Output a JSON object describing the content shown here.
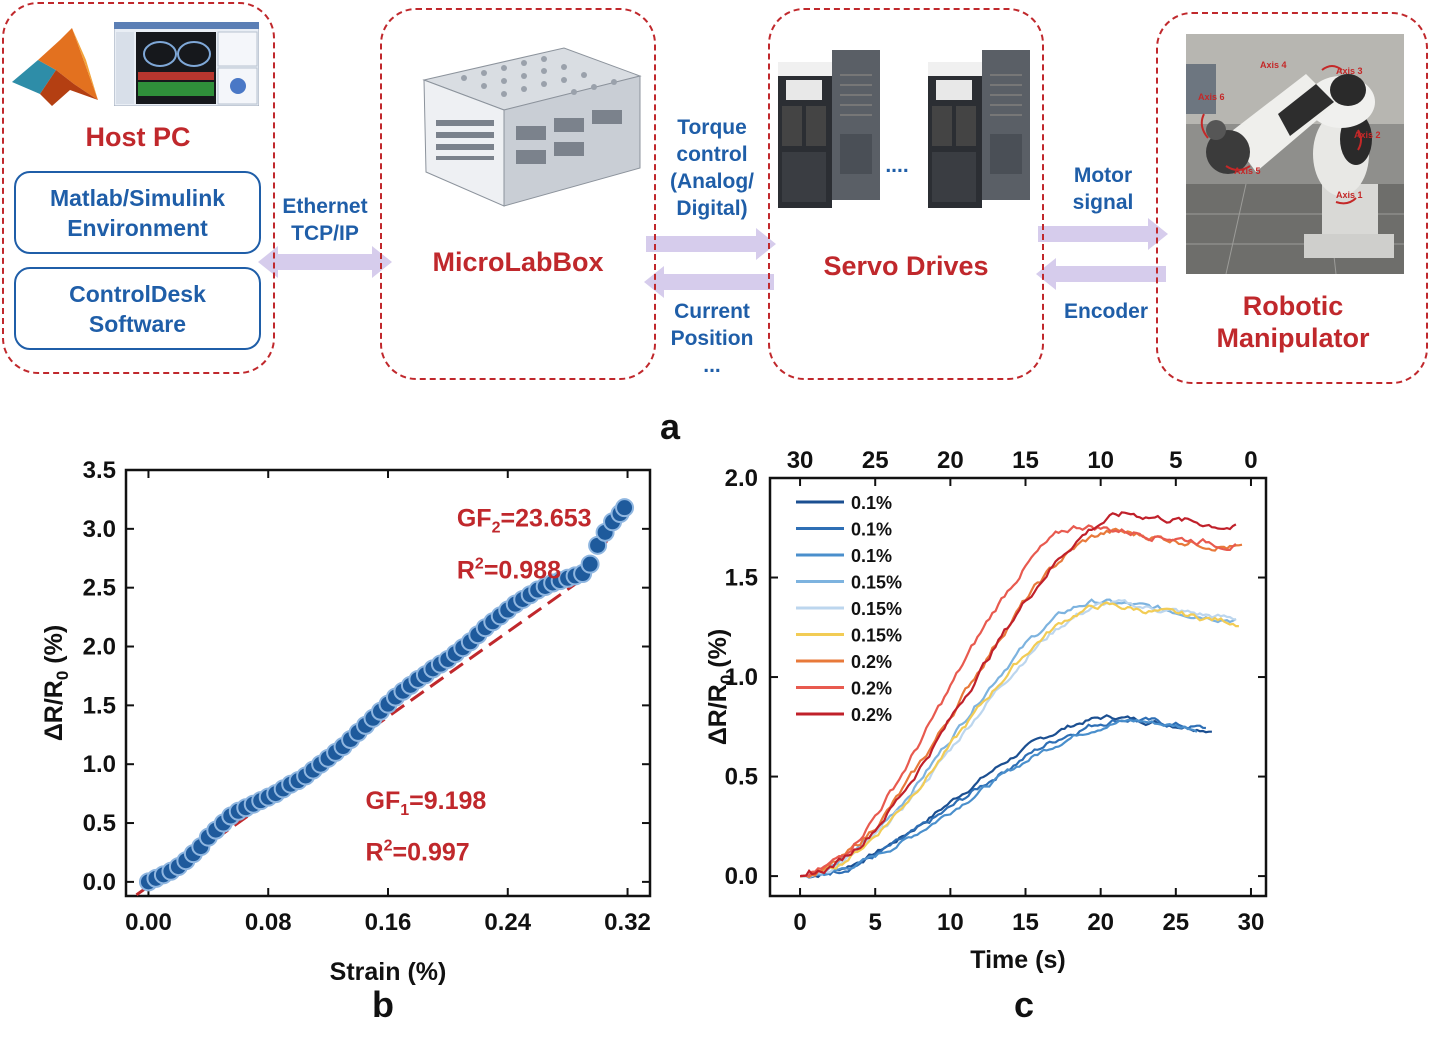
{
  "panel_a": {
    "letter": "a",
    "host_pc": {
      "title": "Host PC",
      "box1_line1": "Matlab/Simulink",
      "box1_line2": "Environment",
      "box2_line1": "ControlDesk",
      "box2_line2": "Software"
    },
    "ethernet": {
      "line1": "Ethernet",
      "line2": "TCP/IP"
    },
    "microlabbox": {
      "title": "MicroLabBox"
    },
    "torque": {
      "line1": "Torque",
      "line2": "control",
      "line3": "(Analog/",
      "line4": "Digital)"
    },
    "current": {
      "line1": "Current",
      "line2": "Position",
      "line3": "..."
    },
    "servo": {
      "title": "Servo Drives",
      "dots": "...."
    },
    "motor": {
      "line1": "Motor",
      "line2": "signal"
    },
    "encoder": {
      "label": "Encoder"
    },
    "robot": {
      "title_line1": "Robotic",
      "title_line2": "Manipulator",
      "axis_labels": [
        "Axis 4",
        "Axis 3",
        "Axis 6",
        "Axis 2",
        "Axis 5",
        "Axis 1"
      ]
    },
    "colors": {
      "box_border": "#c0282c",
      "blue_text": "#1f5ea8",
      "arrow": "#d6ccec"
    }
  },
  "panel_b": {
    "letter": "b",
    "annotations": {
      "gf2": "GF2=23.653",
      "r2_top": "R2=0.988",
      "gf1": "GF1=9.198",
      "r2_bottom": "R2=0.997"
    },
    "chart_data": {
      "type": "scatter",
      "xlabel": "Strain (%)",
      "ylabel": "ΔR/R0 (%)",
      "xlim": [
        -0.015,
        0.335
      ],
      "ylim": [
        -0.12,
        3.5
      ],
      "xticks": [
        "0.00",
        "0.08",
        "0.16",
        "0.24",
        "0.32"
      ],
      "yticks": [
        "0.0",
        "0.5",
        "1.0",
        "1.5",
        "2.0",
        "2.5",
        "3.0",
        "3.5"
      ],
      "series": [
        {
          "marker_color": "#1e5a9c",
          "points": [
            [
              0.0,
              0.0
            ],
            [
              0.005,
              0.03
            ],
            [
              0.01,
              0.06
            ],
            [
              0.015,
              0.09
            ],
            [
              0.02,
              0.13
            ],
            [
              0.025,
              0.18
            ],
            [
              0.03,
              0.24
            ],
            [
              0.035,
              0.3
            ],
            [
              0.04,
              0.38
            ],
            [
              0.045,
              0.44
            ],
            [
              0.05,
              0.5
            ],
            [
              0.055,
              0.56
            ],
            [
              0.06,
              0.6
            ],
            [
              0.065,
              0.63
            ],
            [
              0.07,
              0.66
            ],
            [
              0.075,
              0.69
            ],
            [
              0.08,
              0.72
            ],
            [
              0.085,
              0.75
            ],
            [
              0.09,
              0.79
            ],
            [
              0.095,
              0.83
            ],
            [
              0.1,
              0.86
            ],
            [
              0.105,
              0.9
            ],
            [
              0.11,
              0.95
            ],
            [
              0.115,
              1.0
            ],
            [
              0.12,
              1.05
            ],
            [
              0.125,
              1.1
            ],
            [
              0.13,
              1.15
            ],
            [
              0.135,
              1.21
            ],
            [
              0.14,
              1.27
            ],
            [
              0.145,
              1.33
            ],
            [
              0.15,
              1.39
            ],
            [
              0.155,
              1.45
            ],
            [
              0.16,
              1.51
            ],
            [
              0.165,
              1.57
            ],
            [
              0.17,
              1.62
            ],
            [
              0.175,
              1.67
            ],
            [
              0.18,
              1.72
            ],
            [
              0.185,
              1.76
            ],
            [
              0.19,
              1.81
            ],
            [
              0.195,
              1.85
            ],
            [
              0.2,
              1.89
            ],
            [
              0.205,
              1.94
            ],
            [
              0.21,
              1.99
            ],
            [
              0.215,
              2.04
            ],
            [
              0.22,
              2.1
            ],
            [
              0.225,
              2.16
            ],
            [
              0.23,
              2.21
            ],
            [
              0.235,
              2.26
            ],
            [
              0.24,
              2.31
            ],
            [
              0.245,
              2.36
            ],
            [
              0.25,
              2.4
            ],
            [
              0.255,
              2.44
            ],
            [
              0.26,
              2.48
            ],
            [
              0.265,
              2.51
            ],
            [
              0.27,
              2.54
            ],
            [
              0.275,
              2.56
            ],
            [
              0.28,
              2.58
            ],
            [
              0.285,
              2.6
            ],
            [
              0.29,
              2.62
            ],
            [
              0.295,
              2.7
            ],
            [
              0.3,
              2.86
            ],
            [
              0.305,
              2.97
            ],
            [
              0.31,
              3.06
            ],
            [
              0.315,
              3.13
            ],
            [
              0.318,
              3.18
            ]
          ]
        }
      ],
      "fit_lines": [
        {
          "color": "#c0282c",
          "style": "dashed",
          "from": [
            -0.008,
            -0.11
          ],
          "to": [
            0.295,
            2.62
          ]
        },
        {
          "color": "#c0282c",
          "style": "dashed",
          "from": [
            0.295,
            2.62
          ],
          "to": [
            0.32,
            3.25
          ]
        }
      ]
    }
  },
  "panel_c": {
    "letter": "c",
    "chart_data": {
      "type": "line",
      "xlabel": "Time (s)",
      "ylabel": "ΔR/R0 (%)",
      "xlim": [
        -2,
        31
      ],
      "ylim": [
        -0.1,
        2.0
      ],
      "xticks": [
        "0",
        "5",
        "10",
        "15",
        "20",
        "25",
        "30"
      ],
      "top_xticks": [
        "30",
        "25",
        "20",
        "15",
        "10",
        "5",
        "0"
      ],
      "yticks": [
        "0.0",
        "0.5",
        "1.0",
        "1.5",
        "2.0"
      ],
      "series": [
        {
          "name": "0.1%",
          "color": "#1b4f91",
          "plateau": 0.8,
          "x_end": 27.5,
          "rise": 21,
          "jitter": 0.01
        },
        {
          "name": "0.1%",
          "color": "#2e6fb5",
          "plateau": 0.79,
          "x_end": 27.0,
          "rise": 22,
          "jitter": 0.012
        },
        {
          "name": "0.1%",
          "color": "#4a8fcc",
          "plateau": 0.78,
          "x_end": 26.5,
          "rise": 22.5,
          "jitter": 0.01
        },
        {
          "name": "0.15%",
          "color": "#7db3df",
          "plateau": 1.38,
          "x_end": 29.0,
          "rise": 20,
          "jitter": 0.012
        },
        {
          "name": "0.15%",
          "color": "#bcd6ee",
          "plateau": 1.37,
          "x_end": 29.0,
          "rise": 21,
          "jitter": 0.012
        },
        {
          "name": "0.15%",
          "color": "#f2cc55",
          "plateau": 1.36,
          "x_end": 29.3,
          "rise": 20.5,
          "jitter": 0.012
        },
        {
          "name": "0.2%",
          "color": "#e8793a",
          "plateau": 1.73,
          "x_end": 29.5,
          "rise": 21,
          "jitter": 0.014
        },
        {
          "name": "0.2%",
          "color": "#e85a4f",
          "plateau": 1.76,
          "x_end": 29.0,
          "rise": 19,
          "jitter": 0.014
        },
        {
          "name": "0.2%",
          "color": "#c0202a",
          "plateau": 1.82,
          "x_end": 29.0,
          "rise": 22,
          "jitter": 0.014
        }
      ]
    }
  }
}
